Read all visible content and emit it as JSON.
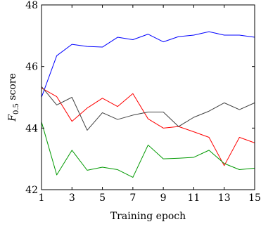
{
  "chart_data": {
    "type": "line",
    "title": "",
    "xlabel": "Training epoch",
    "ylabel": "F0.5 score",
    "ylabel_parts": {
      "main": "F",
      "sub": "0.5",
      "rest": " score"
    },
    "xlim": [
      1,
      15
    ],
    "ylim": [
      42,
      48
    ],
    "xticks": [
      1,
      3,
      5,
      7,
      9,
      11,
      13,
      15
    ],
    "yticks": [
      42,
      44,
      46,
      48
    ],
    "grid": false,
    "legend": "none",
    "x": [
      1,
      2,
      3,
      4,
      5,
      6,
      7,
      8,
      9,
      10,
      11,
      12,
      13,
      14,
      15
    ],
    "series": [
      {
        "color": "#0000ff",
        "values": [
          45.0,
          46.35,
          46.72,
          46.65,
          46.63,
          46.95,
          46.87,
          47.05,
          46.8,
          46.97,
          47.02,
          47.13,
          47.02,
          47.02,
          46.95
        ]
      },
      {
        "color": "#ff0000",
        "values": [
          45.3,
          45.02,
          44.22,
          44.65,
          44.97,
          44.7,
          45.12,
          44.3,
          44.0,
          44.05,
          43.88,
          43.7,
          42.78,
          43.7,
          43.52
        ]
      },
      {
        "color": "#404040",
        "values": [
          45.35,
          44.75,
          45.0,
          43.93,
          44.5,
          44.28,
          44.42,
          44.52,
          44.52,
          44.05,
          44.35,
          44.55,
          44.82,
          44.6,
          44.82
        ]
      },
      {
        "color": "#009900",
        "values": [
          44.2,
          42.48,
          43.28,
          42.63,
          42.73,
          42.65,
          42.4,
          43.45,
          43.0,
          43.02,
          43.05,
          43.28,
          42.85,
          42.65,
          42.7
        ]
      }
    ]
  }
}
